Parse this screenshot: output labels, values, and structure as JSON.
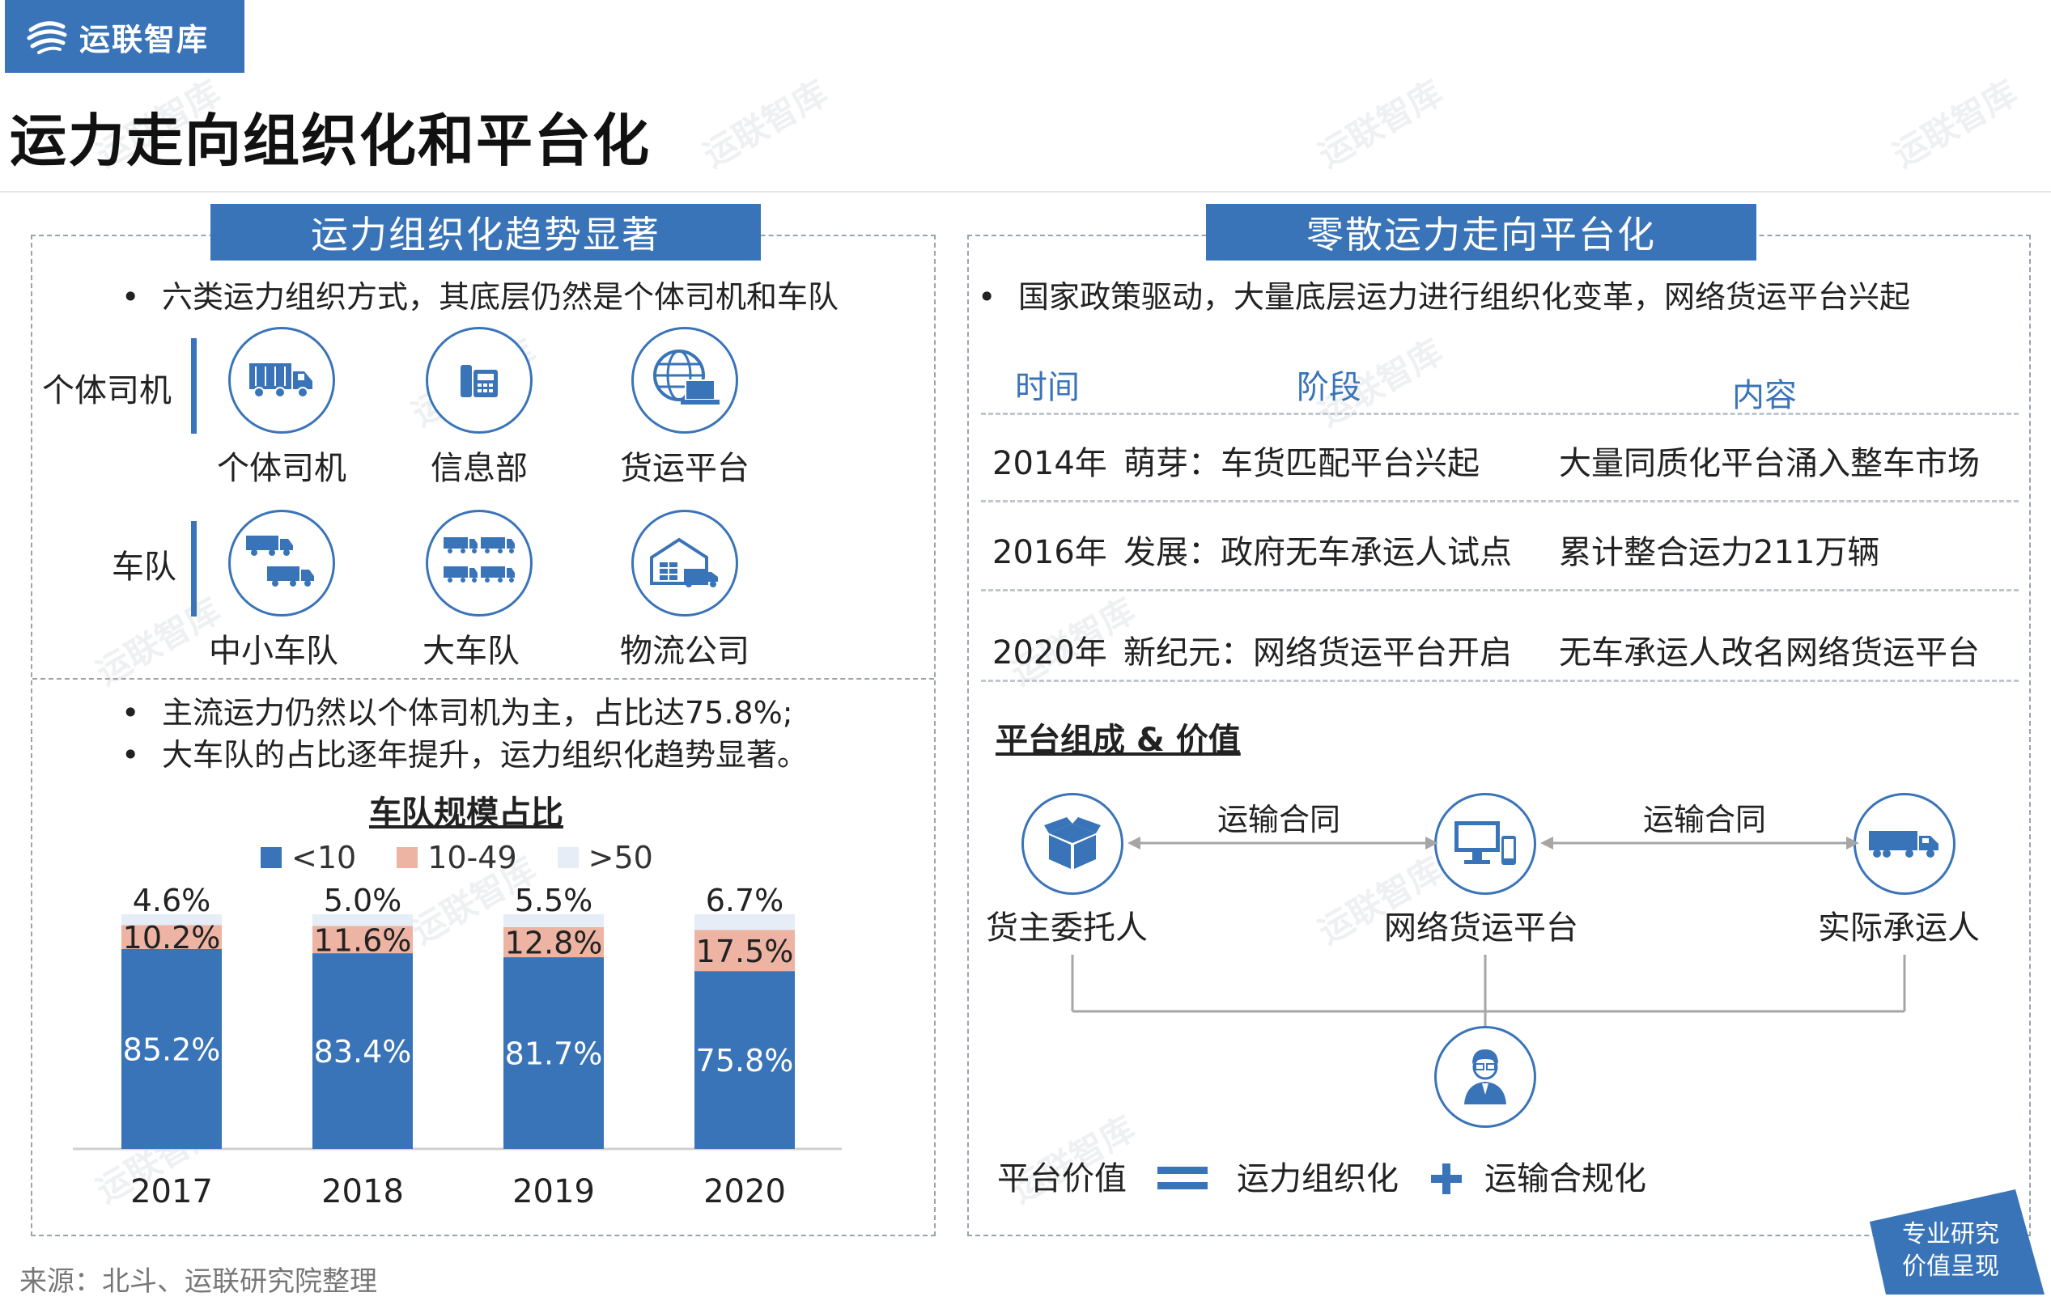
{
  "brand": {
    "name": "运联智库"
  },
  "page_title": "运力走向组织化和平台化",
  "left": {
    "header": "运力组织化趋势显著",
    "bullet1": "六类运力组织方式，其底层仍然是个体司机和车队",
    "group1_label": "个体司机",
    "group2_label": "车队",
    "icons": [
      {
        "label": "个体司机",
        "icon": "truck-icon"
      },
      {
        "label": "信息部",
        "icon": "phone-icon"
      },
      {
        "label": "货运平台",
        "icon": "globe-laptop-icon"
      },
      {
        "label": "中小车队",
        "icon": "two-trucks-icon"
      },
      {
        "label": "大车队",
        "icon": "truck-fleet-icon"
      },
      {
        "label": "物流公司",
        "icon": "warehouse-icon"
      }
    ],
    "bullet2": "主流运力仍然以个体司机为主，占比达75.8%;",
    "bullet3": "大车队的占比逐年提升，运力组织化趋势显著。"
  },
  "chart_data": {
    "type": "bar",
    "stacked": true,
    "title": "车队规模占比",
    "categories": [
      "2017",
      "2018",
      "2019",
      "2020"
    ],
    "series": [
      {
        "name": "<10",
        "values": [
          85.2,
          83.4,
          81.7,
          75.8
        ],
        "labels": [
          "85.2%",
          "83.4%",
          "81.7%",
          "75.8%"
        ],
        "color": "#3a74b8"
      },
      {
        "name": "10-49",
        "values": [
          10.2,
          11.6,
          12.8,
          17.5
        ],
        "labels": [
          "10.2%",
          "11.6%",
          "12.8%",
          "17.5%"
        ],
        "color": "#edb3a3"
      },
      {
        "name": ">50",
        "values": [
          4.6,
          5.0,
          5.5,
          6.7
        ],
        "labels": [
          "4.6%",
          "5.0%",
          "5.5%",
          "6.7%"
        ],
        "color": "#e6edf6"
      }
    ],
    "legend_position": "top",
    "ylim": [
      0,
      100
    ]
  },
  "right": {
    "header": "零散运力走向平台化",
    "bullet1": "国家政策驱动，大量底层运力进行组织化变革，网络货运平台兴起",
    "table_headers": [
      "时间",
      "阶段",
      "内容"
    ],
    "rows": [
      {
        "time": "2014年",
        "stage": "萌芽：车货匹配平台兴起",
        "content": "大量同质化平台涌入整车市场"
      },
      {
        "time": "2016年",
        "stage": "发展：政府无车承运人试点",
        "content": "累计整合运力211万辆"
      },
      {
        "time": "2020年",
        "stage": "新纪元：网络货运平台开启",
        "content": "无车承运人改名网络货运平台"
      }
    ],
    "section_title": "平台组成 & 价值",
    "nodes": [
      "货主委托人",
      "网络货运平台",
      "实际承运人"
    ],
    "arrow_labels": [
      "运输合同",
      "运输合同"
    ],
    "value_label": "平台价值",
    "value_a": "运力组织化",
    "value_b": "运输合规化"
  },
  "footer": {
    "source": "来源：北斗、运联研究院整理",
    "badge_line1": "专业研究",
    "badge_line2": "价值呈现"
  },
  "colors": {
    "accent": "#3a74b8",
    "salmon": "#edb3a3",
    "light": "#e6edf6"
  }
}
